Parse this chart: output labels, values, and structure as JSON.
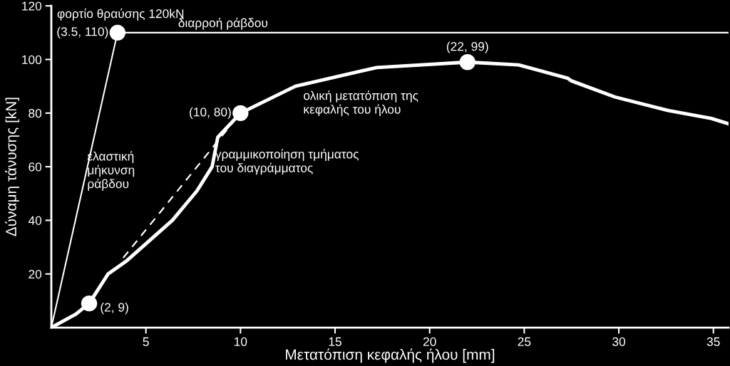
{
  "chart_data": {
    "type": "line",
    "xlabel": "Μετατόπιση κεφαλής ήλου [mm]",
    "ylabel": "Δύναμη τάνυσης [kN]",
    "xlim": [
      0,
      35.8
    ],
    "xticks": [
      5,
      10,
      15,
      20,
      25,
      30,
      35
    ],
    "ylim": [
      0,
      120
    ],
    "yticks": [
      20,
      40,
      60,
      80,
      100,
      120
    ],
    "grid": false,
    "legend": false,
    "series": [
      {
        "color": "#ffffff",
        "line_style": "solid",
        "x": [
          0,
          1.3,
          2,
          3.0,
          4.0,
          6.4,
          7.7,
          8.5,
          8.8,
          10,
          12.9,
          17.2,
          22,
          24.7,
          27.3,
          27.5,
          29.8,
          32.6,
          34.9,
          35.8
        ],
        "values": [
          0,
          5,
          9,
          20,
          25,
          40,
          51,
          60,
          71,
          80,
          90,
          97,
          99,
          98,
          93,
          92,
          86,
          81,
          78,
          76
        ]
      },
      {
        "color": "#ffffff",
        "line_style": "solid",
        "x": [
          0,
          3.5
        ],
        "values": [
          0,
          110
        ]
      },
      {
        "color": "#ffffff",
        "line_style": "solid",
        "x": [
          3.5,
          35.8
        ],
        "values": [
          110,
          110
        ]
      },
      {
        "color": "#ffffff",
        "line_style": "dashed",
        "x": [
          3.8,
          10
        ],
        "values": [
          26,
          80
        ]
      },
      {
        "type": "scatter",
        "color": "#ffffff",
        "marker": "circle",
        "x": [
          2,
          3.5,
          10,
          22
        ],
        "values": [
          9,
          110,
          80,
          99
        ]
      }
    ],
    "annotations": [
      "φορτίο θραύσης 120kN",
      {
        "text": "διαρροή ράβδου",
        "x": 6.7,
        "y": 110
      },
      {
        "text": "(3.5, 110)",
        "x": 3.5,
        "y": 110
      },
      {
        "text": "(22, 99)",
        "x": 22,
        "y": 99
      },
      {
        "text": "(10, 80)",
        "x": 10,
        "y": 80
      },
      {
        "text": "(2, 9)",
        "x": 2,
        "y": 9
      },
      "ολική μετατόπιση της\nκεφαλής του ήλου",
      "γραμμικοποίηση τμήματος\nτου διαγράμματος",
      "ελαστική\nμήκυνση\nράβδου"
    ]
  }
}
